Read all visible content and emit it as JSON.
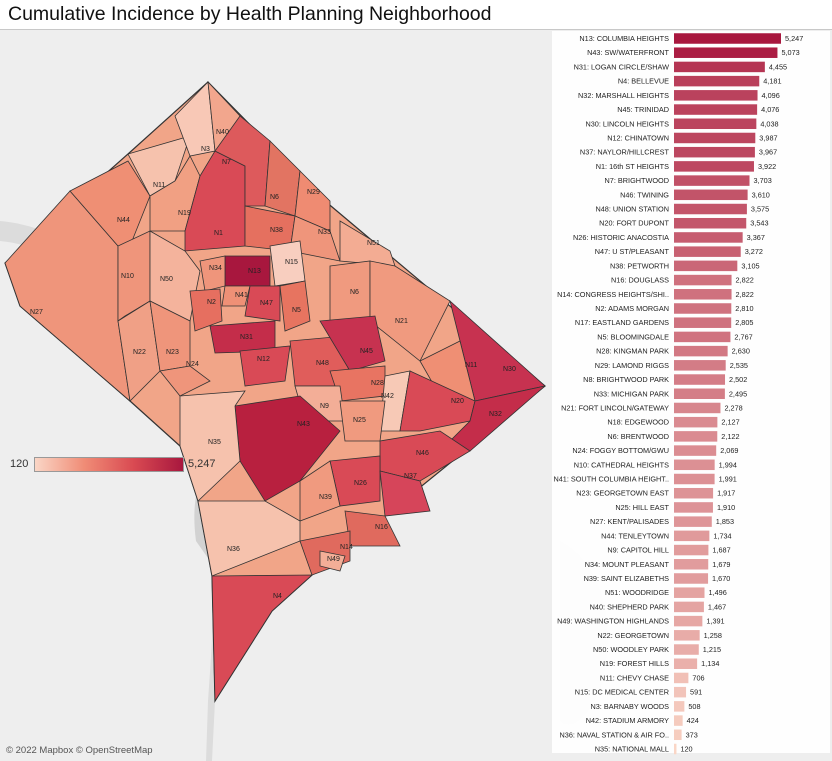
{
  "title": "Cumulative Incidence by Health Planning Neighborhood",
  "attribution": "© 2022 Mapbox © OpenStreetMap",
  "legend": {
    "min_label": "120",
    "max_label": "5,247",
    "color_low": "#fad6c6",
    "color_high": "#a8173e"
  },
  "map_labels": [
    "N40",
    "N3",
    "N7",
    "N11",
    "N6",
    "N29",
    "N19",
    "N44",
    "N1",
    "N38",
    "N33",
    "N51",
    "N15",
    "N34",
    "N13",
    "N10",
    "N50",
    "N6",
    "N41",
    "N2",
    "N47",
    "N5",
    "N27",
    "N21",
    "N31",
    "N22",
    "N23",
    "N24",
    "N12",
    "N48",
    "N45",
    "N28",
    "N9",
    "N11",
    "N30",
    "N42",
    "N20",
    "N32",
    "N25",
    "N43",
    "N46",
    "N35",
    "N26",
    "N37",
    "N39",
    "N16",
    "N36",
    "N14",
    "N49",
    "N4"
  ],
  "chart_data": {
    "type": "bar",
    "orientation": "horizontal",
    "title": "Cumulative Incidence by Health Planning Neighborhood",
    "xlabel": "",
    "ylabel": "",
    "xlim": [
      0,
      5247
    ],
    "categories": [
      "N13: COLUMBIA HEIGHTS",
      "N43: SW/WATERFRONT",
      "N31: LOGAN CIRCLE/SHAW",
      "N4: BELLEVUE",
      "N32: MARSHALL HEIGHTS",
      "N45: TRINIDAD",
      "N30: LINCOLN HEIGHTS",
      "N12: CHINATOWN",
      "N37: NAYLOR/HILLCREST",
      "N1: 16th ST HEIGHTS",
      "N7: BRIGHTWOOD",
      "N46: TWINING",
      "N48: UNION STATION",
      "N20: FORT DUPONT",
      "N26: HISTORIC ANACOSTIA",
      "N47: U ST/PLEASANT",
      "N38: PETWORTH",
      "N16: DOUGLASS",
      "N14: CONGRESS HEIGHTS/SHI..",
      "N2: ADAMS MORGAN",
      "N17: EASTLAND GARDENS",
      "N5: BLOOMINGDALE",
      "N28: KINGMAN PARK",
      "N29: LAMOND RIGGS",
      "N8: BRIGHTWOOD PARK",
      "N33: MICHIGAN PARK",
      "N21: FORT LINCOLN/GATEWAY",
      "N18: EDGEWOOD",
      "N6: BRENTWOOD",
      "N24: FOGGY BOTTOM/GWU",
      "N10: CATHEDRAL HEIGHTS",
      "N41: SOUTH COLUMBIA HEIGHT..",
      "N23: GEORGETOWN EAST",
      "N25: HILL EAST",
      "N27: KENT/PALISADES",
      "N44: TENLEYTOWN",
      "N9: CAPITOL HILL",
      "N34: MOUNT PLEASANT",
      "N39: SAINT ELIZABETHS",
      "N51: WOODRIDGE",
      "N40: SHEPHERD PARK",
      "N49: WASHINGTON HIGHLANDS",
      "N22: GEORGETOWN",
      "N50: WOODLEY PARK",
      "N19: FOREST HILLS",
      "N11: CHEVY CHASE",
      "N15: DC MEDICAL CENTER",
      "N3: BARNABY WOODS",
      "N42: STADIUM ARMORY",
      "N36: NAVAL STATION & AIR FO..",
      "N35: NATIONAL MALL"
    ],
    "values": [
      5247,
      5073,
      4455,
      4181,
      4096,
      4076,
      4038,
      3987,
      3967,
      3922,
      3703,
      3610,
      3575,
      3543,
      3367,
      3272,
      3105,
      2822,
      2822,
      2810,
      2805,
      2767,
      2630,
      2535,
      2502,
      2495,
      2278,
      2127,
      2122,
      2069,
      1994,
      1991,
      1917,
      1910,
      1853,
      1734,
      1687,
      1679,
      1670,
      1496,
      1467,
      1391,
      1258,
      1215,
      1134,
      706,
      591,
      508,
      424,
      373,
      120
    ],
    "value_labels": [
      "5,247",
      "5,073",
      "4,455",
      "4,181",
      "4,096",
      "4,076",
      "4,038",
      "3,987",
      "3,967",
      "3,922",
      "3,703",
      "3,610",
      "3,575",
      "3,543",
      "3,367",
      "3,272",
      "3,105",
      "2,822",
      "2,822",
      "2,810",
      "2,805",
      "2,767",
      "2,630",
      "2,535",
      "2,502",
      "2,495",
      "2,278",
      "2,127",
      "2,122",
      "2,069",
      "1,994",
      "1,991",
      "1,917",
      "1,910",
      "1,853",
      "1,734",
      "1,687",
      "1,679",
      "1,670",
      "1,496",
      "1,467",
      "1,391",
      "1,258",
      "1,215",
      "1,134",
      "706",
      "591",
      "508",
      "424",
      "373",
      "120"
    ],
    "color_scale": [
      "#fad6c6",
      "#a8173e"
    ]
  }
}
